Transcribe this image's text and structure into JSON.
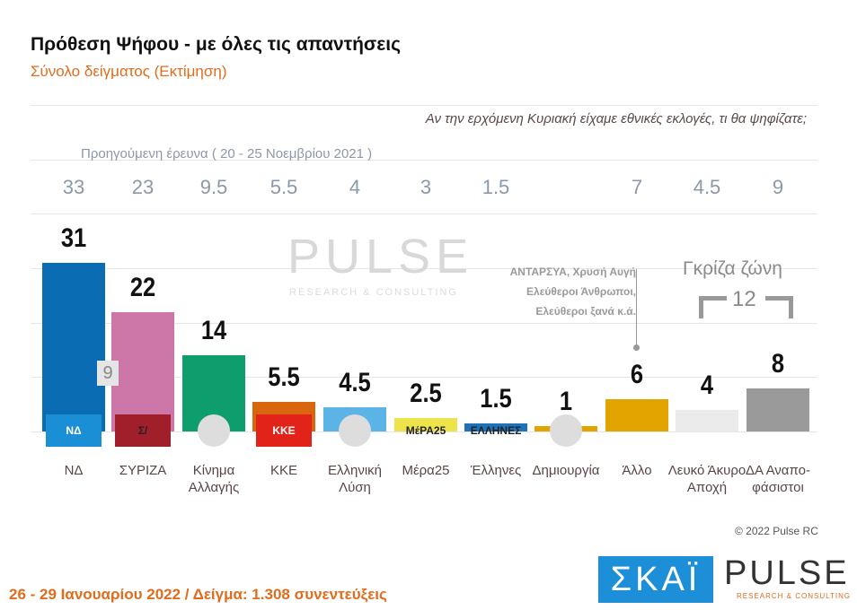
{
  "header": {
    "title": "Πρόθεση Ψήφου - με όλες τις απαντήσεις",
    "subtitle": "Σύνολο δείγματος   (Εκτίμηση)",
    "question": "Αν την ερχόμενη Κυριακή είχαμε εθνικές εκλογές, τι θα ψηφίζατε;",
    "previous_label": "Προηγούμενη έρευνα  ( 20 - 25 Νοεμβρίου  2021 )"
  },
  "chart_data": {
    "type": "bar",
    "title": "Πρόθεση Ψήφου - με όλες τις απαντήσεις",
    "ylim": [
      0,
      35
    ],
    "categories": [
      "ΝΔ",
      "ΣΥΡΙΖΑ",
      "Κίνημα Αλλαγής",
      "ΚΚΕ",
      "Ελληνική Λύση",
      "Μέρα25",
      "Έλληνες",
      "Δημιουργία",
      "Άλλο",
      "Λευκό Άκυρο Αποχή",
      "ΔΑ Αναπο-φάσιστοι"
    ],
    "values": [
      31,
      22,
      14,
      5.5,
      4.5,
      2.5,
      1.5,
      1,
      6,
      4,
      8
    ],
    "value_labels": [
      "31",
      "22",
      "14",
      "5.5",
      "4.5",
      "2.5",
      "1.5",
      "1",
      "6",
      "4",
      "8"
    ],
    "previous": [
      "33",
      "23",
      "9.5",
      "5.5",
      "4",
      "3",
      "1.5",
      "",
      "7",
      "4.5",
      "9"
    ],
    "colors": [
      "#0a6db3",
      "#cc77a8",
      "#0e9e6e",
      "#d9660f",
      "#5bb3e6",
      "#ece44a",
      "#1e73b8",
      "#e3a400",
      "#e3a400",
      "#ebebeb",
      "#9a9a9a"
    ],
    "logos": [
      "ΝΔ",
      "Σ/",
      "",
      "ΚΚΕ",
      "",
      "ΜέΡΑ25",
      "ΕΛΛΗΝΕΣ",
      "",
      "",
      "",
      ""
    ],
    "gap_label": "9"
  },
  "notes": {
    "other_parties": [
      "ΑΝΤΑΡΣΥΑ, Χρυσή Αυγή",
      "Ελεύθεροι Άνθρωποι,",
      "Ελεύθεροι ξανά      κ.ά."
    ],
    "grey_zone_label": "Γκρίζα ζώνη",
    "grey_zone_value": "12"
  },
  "footer": {
    "info": "26 - 29  Ιανουαρίου  2022  /  Δείγμα:  1.308 συνεντεύξεις",
    "copyright": "© 2022 Pulse RC",
    "skai": "ΣΚΑΪ",
    "pulse": "PULSE",
    "pulse_sub": "RESEARCH & CONSULTING"
  }
}
